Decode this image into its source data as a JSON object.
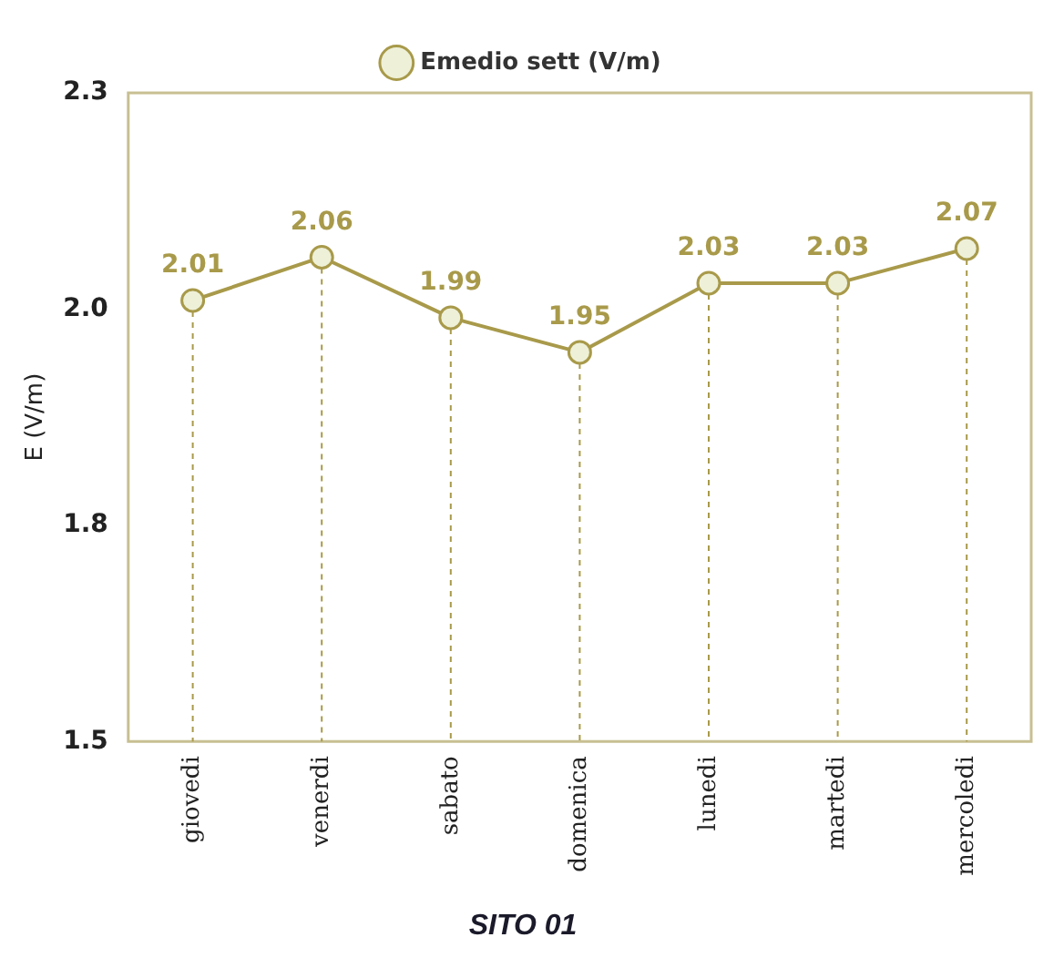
{
  "chart_data": {
    "type": "line",
    "title": "SITO 01",
    "ylabel": "E (V/m)",
    "categories": [
      "giovedi",
      "venerdi",
      "sabato",
      "domenica",
      "lunedi",
      "martedi",
      "mercoledi"
    ],
    "series": [
      {
        "name": "Emedio sett (V/m)",
        "color": "#a89a4a",
        "values": [
          2.01,
          2.06,
          1.99,
          1.95,
          2.03,
          2.03,
          2.07
        ]
      }
    ],
    "ylim": [
      1.5,
      2.25
    ],
    "yticks": [
      {
        "value": 1.5,
        "label": "1.5"
      },
      {
        "value": 1.75,
        "label": "1.8"
      },
      {
        "value": 2.0,
        "label": "2.0"
      },
      {
        "value": 2.25,
        "label": "2.3"
      }
    ],
    "data_labels": true,
    "legend": "top",
    "marker": "circle",
    "line_style": "solid",
    "grid": "x"
  }
}
